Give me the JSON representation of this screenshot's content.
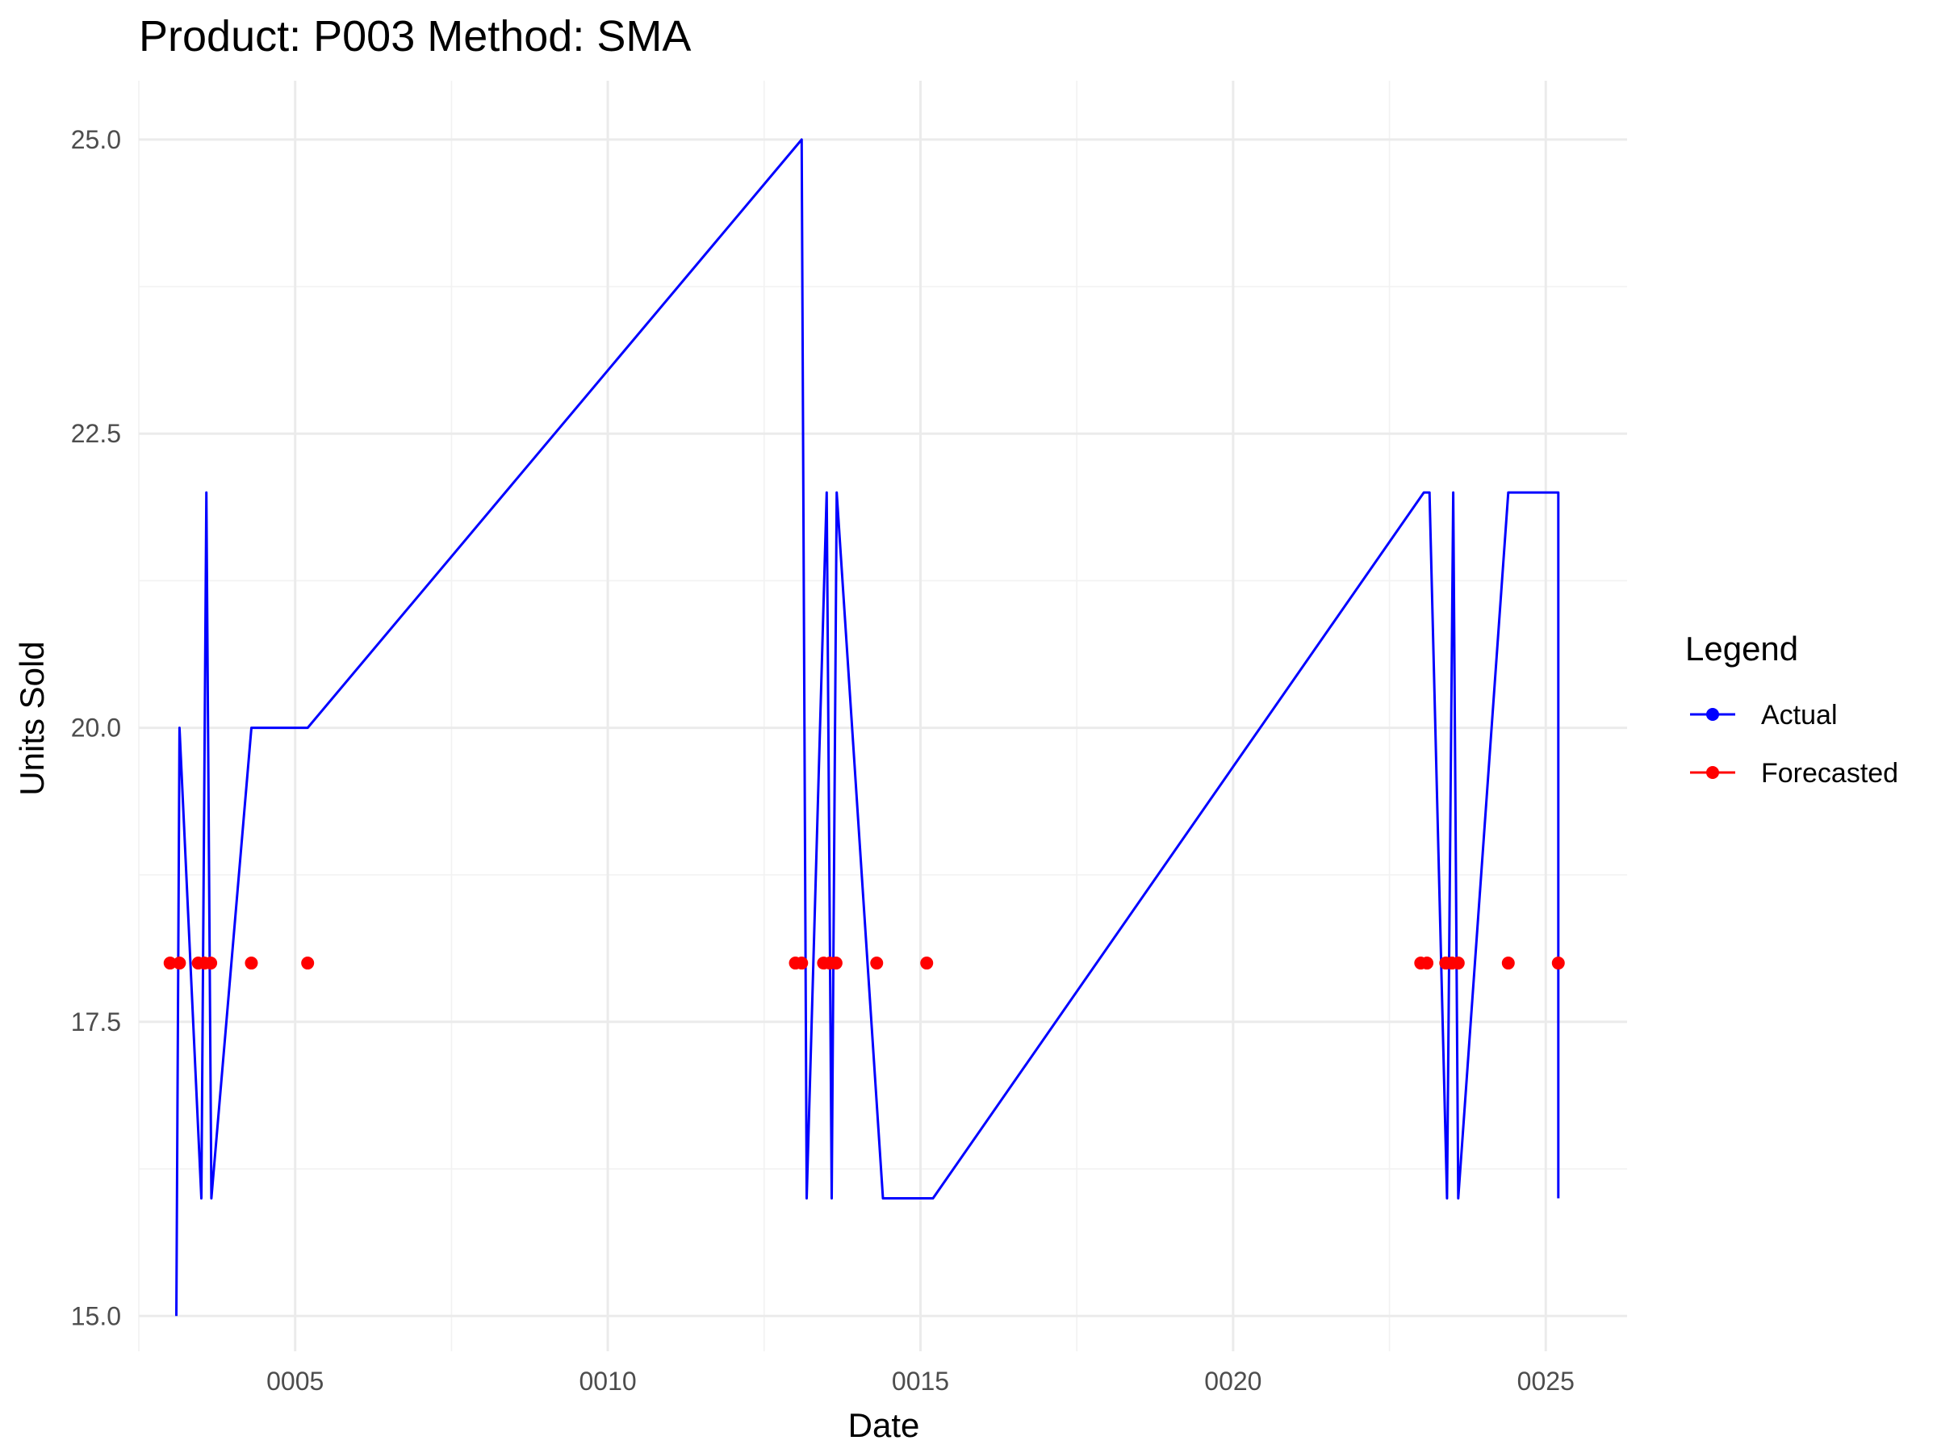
{
  "chart_data": {
    "type": "line",
    "title": "Product: P003 Method: SMA",
    "xlabel": "Date",
    "ylabel": "Units Sold",
    "x_ticks": [
      "0005",
      "0010",
      "0015",
      "0020",
      "0025"
    ],
    "x_tick_values": [
      5,
      10,
      15,
      20,
      25
    ],
    "y_ticks": [
      "15.0",
      "17.5",
      "20.0",
      "22.5",
      "25.0"
    ],
    "y_tick_values": [
      15,
      17.5,
      20,
      22.5,
      25
    ],
    "xlim": [
      2.5,
      26.3
    ],
    "ylim": [
      14.7,
      25.5
    ],
    "grid": true,
    "legend": {
      "title": "Legend",
      "position": "right",
      "entries": [
        {
          "label": "Actual",
          "color": "#0000ff"
        },
        {
          "label": "Forecasted",
          "color": "#ff0000"
        }
      ]
    },
    "series": [
      {
        "name": "Actual",
        "style": "line",
        "color": "#0000ff",
        "x": [
          3.1,
          3.15,
          3.5,
          3.58,
          3.66,
          4.3,
          5.2,
          13.1,
          13.18,
          13.5,
          13.58,
          13.66,
          14.4,
          15.2,
          23.05,
          23.14,
          23.42,
          23.52,
          23.6,
          24.4,
          25.2,
          25.2
        ],
        "values": [
          15,
          20,
          16,
          22,
          16,
          20,
          20,
          25,
          16,
          22,
          16,
          22,
          16,
          16,
          22,
          22,
          16,
          22,
          16,
          22,
          22,
          16
        ]
      },
      {
        "name": "Forecasted",
        "style": "points",
        "color": "#ff0000",
        "x": [
          3.0,
          3.15,
          3.45,
          3.55,
          3.65,
          4.3,
          5.2,
          13.0,
          13.1,
          13.45,
          13.55,
          13.65,
          14.3,
          15.1,
          23.0,
          23.1,
          23.4,
          23.5,
          23.6,
          24.4,
          25.2
        ],
        "values": [
          18,
          18,
          18,
          18,
          18,
          18,
          18,
          18,
          18,
          18,
          18,
          18,
          18,
          18,
          18,
          18,
          18,
          18,
          18,
          18,
          18
        ]
      }
    ]
  }
}
